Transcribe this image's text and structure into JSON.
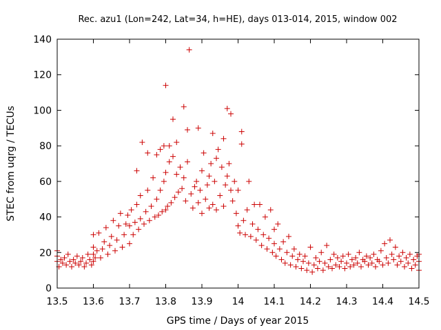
{
  "chart_data": {
    "type": "scatter",
    "title": "Rec. azu1 (Lon=242, Lat=34, h=HE), days 013-014, 2015, window 002",
    "xlabel": "GPS time / Days of year 2015",
    "ylabel": "STEC from uqrg / TECUs",
    "xlim": [
      13.5,
      14.5
    ],
    "ylim": [
      0,
      140
    ],
    "xticks": [
      "13.5",
      "13.6",
      "13.7",
      "13.8",
      "13.9",
      "14",
      "14.1",
      "14.2",
      "14.3",
      "14.4",
      "14.5"
    ],
    "yticks": [
      "0",
      "20",
      "40",
      "60",
      "80",
      "100",
      "120",
      "140"
    ],
    "grid": false,
    "marker": "+",
    "color": "#cc0000",
    "series": [
      {
        "name": "STEC",
        "points": [
          [
            13.5,
            18
          ],
          [
            13.5,
            15
          ],
          [
            13.5,
            21
          ],
          [
            13.505,
            12
          ],
          [
            13.51,
            16
          ],
          [
            13.515,
            14
          ],
          [
            13.52,
            17
          ],
          [
            13.525,
            13
          ],
          [
            13.53,
            19
          ],
          [
            13.535,
            15
          ],
          [
            13.54,
            12
          ],
          [
            13.545,
            16
          ],
          [
            13.55,
            14
          ],
          [
            13.555,
            18
          ],
          [
            13.56,
            13
          ],
          [
            13.565,
            15
          ],
          [
            13.57,
            17
          ],
          [
            13.575,
            12
          ],
          [
            13.58,
            14
          ],
          [
            13.585,
            19
          ],
          [
            13.59,
            16
          ],
          [
            13.595,
            13
          ],
          [
            13.6,
            15
          ],
          [
            13.6,
            19
          ],
          [
            13.6,
            23
          ],
          [
            13.6,
            30
          ],
          [
            13.605,
            17
          ],
          [
            13.61,
            21
          ],
          [
            13.615,
            31
          ],
          [
            13.62,
            17
          ],
          [
            13.625,
            22
          ],
          [
            13.63,
            26
          ],
          [
            13.635,
            34
          ],
          [
            13.64,
            19
          ],
          [
            13.645,
            24
          ],
          [
            13.65,
            29
          ],
          [
            13.655,
            38
          ],
          [
            13.66,
            21
          ],
          [
            13.665,
            27
          ],
          [
            13.67,
            35
          ],
          [
            13.675,
            42
          ],
          [
            13.68,
            23
          ],
          [
            13.685,
            30
          ],
          [
            13.69,
            36
          ],
          [
            13.695,
            41
          ],
          [
            13.7,
            25
          ],
          [
            13.7,
            35
          ],
          [
            13.705,
            44
          ],
          [
            13.71,
            30
          ],
          [
            13.715,
            37
          ],
          [
            13.72,
            47
          ],
          [
            13.72,
            66
          ],
          [
            13.725,
            33
          ],
          [
            13.73,
            39
          ],
          [
            13.73,
            52
          ],
          [
            13.735,
            82
          ],
          [
            13.74,
            36
          ],
          [
            13.745,
            43
          ],
          [
            13.75,
            55
          ],
          [
            13.75,
            76
          ],
          [
            13.755,
            38
          ],
          [
            13.76,
            46
          ],
          [
            13.765,
            62
          ],
          [
            13.77,
            40
          ],
          [
            13.775,
            50
          ],
          [
            13.775,
            75
          ],
          [
            13.78,
            41
          ],
          [
            13.785,
            55
          ],
          [
            13.785,
            78
          ],
          [
            13.79,
            43
          ],
          [
            13.795,
            60
          ],
          [
            13.795,
            80
          ],
          [
            13.8,
            44
          ],
          [
            13.8,
            65
          ],
          [
            13.8,
            114
          ],
          [
            13.805,
            46
          ],
          [
            13.81,
            71
          ],
          [
            13.81,
            80
          ],
          [
            13.815,
            48
          ],
          [
            13.82,
            74
          ],
          [
            13.82,
            95
          ],
          [
            13.825,
            51
          ],
          [
            13.83,
            64
          ],
          [
            13.83,
            82
          ],
          [
            13.835,
            54
          ],
          [
            13.84,
            68
          ],
          [
            13.845,
            56
          ],
          [
            13.85,
            62
          ],
          [
            13.85,
            102
          ],
          [
            13.855,
            49
          ],
          [
            13.86,
            71
          ],
          [
            13.86,
            89
          ],
          [
            13.865,
            134
          ],
          [
            13.87,
            53
          ],
          [
            13.875,
            45
          ],
          [
            13.88,
            57
          ],
          [
            13.885,
            60
          ],
          [
            13.89,
            48
          ],
          [
            13.89,
            90
          ],
          [
            13.895,
            55
          ],
          [
            13.9,
            42
          ],
          [
            13.9,
            66
          ],
          [
            13.905,
            76
          ],
          [
            13.91,
            50
          ],
          [
            13.915,
            58
          ],
          [
            13.92,
            45
          ],
          [
            13.92,
            63
          ],
          [
            13.925,
            70
          ],
          [
            13.93,
            47
          ],
          [
            13.93,
            87
          ],
          [
            13.935,
            60
          ],
          [
            13.94,
            44
          ],
          [
            13.94,
            73
          ],
          [
            13.945,
            78
          ],
          [
            13.95,
            52
          ],
          [
            13.955,
            68
          ],
          [
            13.96,
            46
          ],
          [
            13.96,
            84
          ],
          [
            13.965,
            58
          ],
          [
            13.97,
            63
          ],
          [
            13.97,
            101
          ],
          [
            13.975,
            70
          ],
          [
            13.98,
            55
          ],
          [
            13.98,
            98
          ],
          [
            13.985,
            49
          ],
          [
            13.99,
            60
          ],
          [
            13.995,
            42
          ],
          [
            14,
            35
          ],
          [
            14,
            55
          ],
          [
            14.005,
            31
          ],
          [
            14.01,
            88
          ],
          [
            14.01,
            81
          ],
          [
            14.015,
            38
          ],
          [
            14.02,
            30
          ],
          [
            14.025,
            44
          ],
          [
            14.03,
            60
          ],
          [
            14.035,
            29
          ],
          [
            14.04,
            36
          ],
          [
            14.045,
            47
          ],
          [
            14.05,
            27
          ],
          [
            14.055,
            33
          ],
          [
            14.06,
            47
          ],
          [
            14.065,
            24
          ],
          [
            14.07,
            30
          ],
          [
            14.075,
            40
          ],
          [
            14.08,
            22
          ],
          [
            14.085,
            28
          ],
          [
            14.09,
            44
          ],
          [
            14.095,
            20
          ],
          [
            14.1,
            25
          ],
          [
            14.1,
            33
          ],
          [
            14.105,
            18
          ],
          [
            14.11,
            36
          ],
          [
            14.115,
            22
          ],
          [
            14.12,
            16
          ],
          [
            14.125,
            26
          ],
          [
            14.13,
            14
          ],
          [
            14.135,
            20
          ],
          [
            14.14,
            29
          ],
          [
            14.145,
            13
          ],
          [
            14.15,
            18
          ],
          [
            14.155,
            22
          ],
          [
            14.16,
            12
          ],
          [
            14.165,
            16
          ],
          [
            14.17,
            19
          ],
          [
            14.175,
            11
          ],
          [
            14.18,
            15
          ],
          [
            14.185,
            18
          ],
          [
            14.19,
            10
          ],
          [
            14.195,
            14
          ],
          [
            14.2,
            23
          ],
          [
            14.205,
            9
          ],
          [
            14.21,
            13
          ],
          [
            14.215,
            17
          ],
          [
            14.22,
            11
          ],
          [
            14.225,
            15
          ],
          [
            14.23,
            20
          ],
          [
            14.235,
            10
          ],
          [
            14.24,
            14
          ],
          [
            14.245,
            24
          ],
          [
            14.25,
            12
          ],
          [
            14.255,
            16
          ],
          [
            14.26,
            11
          ],
          [
            14.265,
            19
          ],
          [
            14.27,
            13
          ],
          [
            14.275,
            17
          ],
          [
            14.28,
            12
          ],
          [
            14.285,
            15
          ],
          [
            14.29,
            18
          ],
          [
            14.295,
            11
          ],
          [
            14.3,
            14
          ],
          [
            14.305,
            19
          ],
          [
            14.31,
            12
          ],
          [
            14.315,
            16
          ],
          [
            14.32,
            13
          ],
          [
            14.325,
            17
          ],
          [
            14.33,
            14
          ],
          [
            14.335,
            20
          ],
          [
            14.34,
            12
          ],
          [
            14.345,
            16
          ],
          [
            14.35,
            15
          ],
          [
            14.355,
            18
          ],
          [
            14.36,
            13
          ],
          [
            14.365,
            17
          ],
          [
            14.37,
            14
          ],
          [
            14.375,
            19
          ],
          [
            14.38,
            12
          ],
          [
            14.385,
            16
          ],
          [
            14.39,
            15
          ],
          [
            14.395,
            21
          ],
          [
            14.4,
            13
          ],
          [
            14.405,
            25
          ],
          [
            14.41,
            17
          ],
          [
            14.415,
            14
          ],
          [
            14.42,
            27
          ],
          [
            14.425,
            19
          ],
          [
            14.43,
            16
          ],
          [
            14.435,
            23
          ],
          [
            14.44,
            13
          ],
          [
            14.445,
            18
          ],
          [
            14.45,
            15
          ],
          [
            14.455,
            20
          ],
          [
            14.46,
            12
          ],
          [
            14.465,
            17
          ],
          [
            14.47,
            14
          ],
          [
            14.475,
            19
          ],
          [
            14.48,
            11
          ],
          [
            14.485,
            16
          ],
          [
            14.49,
            13
          ],
          [
            14.495,
            18
          ],
          [
            14.5,
            10
          ],
          [
            14.5,
            15
          ],
          [
            14.5,
            19
          ]
        ]
      }
    ]
  }
}
